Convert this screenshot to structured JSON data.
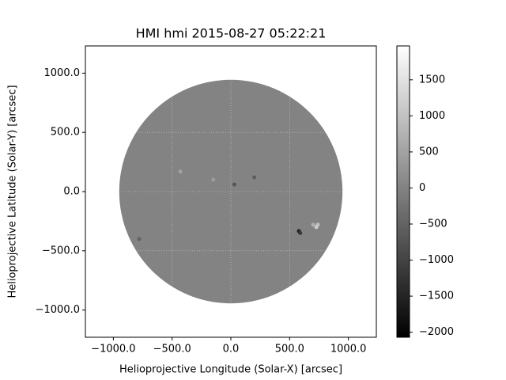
{
  "chart_data": {
    "type": "image",
    "title": "HMI hmi 2015-08-27 05:22:21",
    "xlabel": "Helioprojective Longitude (Solar-X) [arcsec]",
    "ylabel": "Helioprojective Latitude (Solar-Y) [arcsec]",
    "xlim": [
      -1238,
      1238
    ],
    "ylim": [
      -1230,
      1230
    ],
    "xticks": [
      {
        "value": -1000,
        "label": "−1000.0"
      },
      {
        "value": -500,
        "label": "−500.0"
      },
      {
        "value": 0,
        "label": "0.0"
      },
      {
        "value": 500,
        "label": "500.0"
      },
      {
        "value": 1000,
        "label": "1000.0"
      }
    ],
    "yticks": [
      {
        "value": -1000,
        "label": "−1000.0"
      },
      {
        "value": -500,
        "label": "−500.0"
      },
      {
        "value": 0,
        "label": "0.0"
      },
      {
        "value": 500,
        "label": "500.0"
      },
      {
        "value": 1000,
        "label": "1000.0"
      }
    ],
    "grid": true,
    "colormap": "gray",
    "clim": [
      -2070,
      1970
    ],
    "cticks": [
      {
        "value": -2000,
        "label": "−2000"
      },
      {
        "value": -1500,
        "label": "−1500"
      },
      {
        "value": -1000,
        "label": "−1000"
      },
      {
        "value": -500,
        "label": "−500"
      },
      0,
      500,
      1000,
      1500
    ],
    "disk": {
      "radius": 950,
      "value": 0
    },
    "features": {
      "x": [
        579,
        590,
        727,
        740,
        700,
        30,
        -430,
        -780,
        200,
        -150
      ],
      "y": [
        -333,
        -350,
        -300,
        -280,
        -280,
        60,
        170,
        -400,
        120,
        100
      ],
      "values": [
        -1500,
        -1200,
        1200,
        1000,
        700,
        -700,
        500,
        -500,
        -600,
        400
      ]
    }
  }
}
